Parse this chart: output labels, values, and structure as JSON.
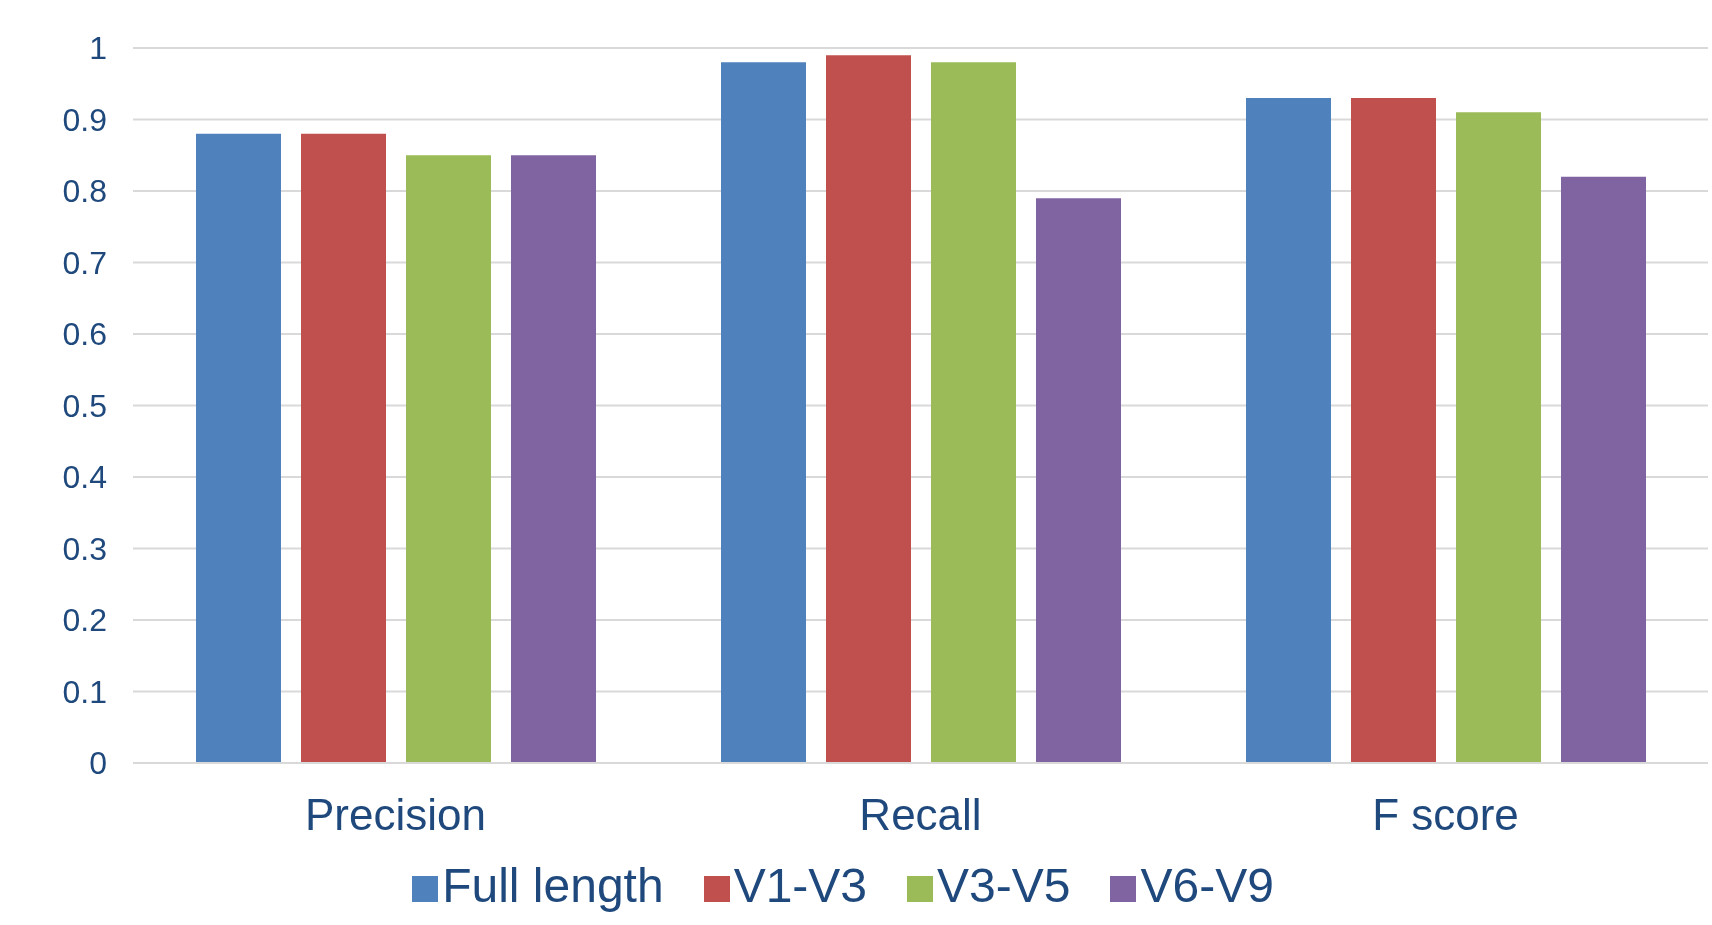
{
  "chart_data": {
    "type": "bar",
    "categories": [
      "Precision",
      "Recall",
      "F score"
    ],
    "series": [
      {
        "name": "Full length",
        "color": "#4f81bd",
        "values": [
          0.88,
          0.98,
          0.93
        ]
      },
      {
        "name": "V1-V3",
        "color": "#c0504d",
        "values": [
          0.88,
          0.99,
          0.93
        ]
      },
      {
        "name": "V3-V5",
        "color": "#9bbb59",
        "values": [
          0.85,
          0.98,
          0.91
        ]
      },
      {
        "name": "V6-V9",
        "color": "#8064a2",
        "values": [
          0.85,
          0.79,
          0.82
        ]
      }
    ],
    "ylim": [
      0,
      1
    ],
    "yticks": [
      0,
      {
        "value": 0.1,
        "label": "0.1"
      },
      {
        "value": 0.2,
        "label": "0.2"
      },
      {
        "value": 0.3,
        "label": "0.3"
      },
      {
        "value": 0.4,
        "label": "0.4"
      },
      {
        "value": 0.5,
        "label": "0.5"
      },
      {
        "value": 0.6,
        "label": "0.6"
      },
      {
        "value": 0.7,
        "label": "0.7"
      },
      {
        "value": 0.8,
        "label": "0.8"
      },
      {
        "value": 0.9,
        "label": "0.9"
      },
      1
    ],
    "grid": "y",
    "legend": "bottom"
  }
}
